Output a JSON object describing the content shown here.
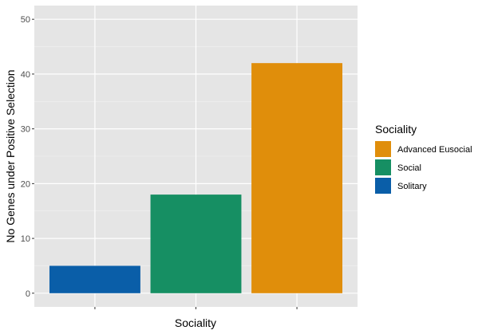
{
  "chart_data": {
    "type": "bar",
    "categories": [
      "Solitary",
      "Social",
      "Advanced Eusocial"
    ],
    "values": [
      5,
      18,
      42
    ],
    "colors": {
      "Solitary": "#0a5ea8",
      "Social": "#168f63",
      "Advanced Eusocial": "#e08e0b"
    },
    "xlabel": "Sociality",
    "ylabel": "No Genes under Positive Selection",
    "ylim": [
      0,
      50
    ],
    "yticks": [
      0,
      10,
      20,
      30,
      40,
      50
    ],
    "grid": true,
    "panel_background": "#e5e5e5",
    "legend": {
      "title": "Sociality",
      "position": "right",
      "entries": [
        "Advanced Eusocial",
        "Social",
        "Solitary"
      ]
    }
  }
}
